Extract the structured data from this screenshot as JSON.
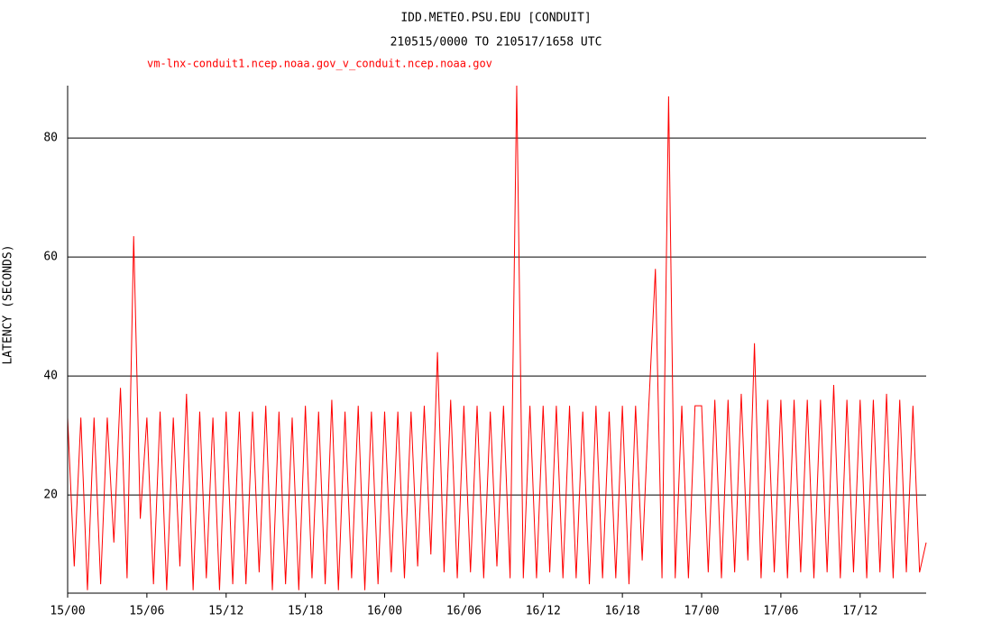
{
  "chart_data": {
    "type": "line",
    "title": "IDD.METEO.PSU.EDU [CONDUIT]",
    "subtitle": "210515/0000 TO 210517/1658 UTC",
    "y_label": "LATENCY (SECONDS)",
    "x": [
      0,
      0.5,
      1,
      1.5,
      2,
      2.5,
      3,
      3.5,
      4,
      4.5,
      5,
      5.5,
      6,
      6.5,
      7,
      7.5,
      8,
      8.5,
      9,
      9.5,
      10,
      10.5,
      11,
      11.5,
      12,
      12.5,
      13,
      13.5,
      14,
      14.5,
      15,
      15.5,
      16,
      16.5,
      17,
      17.5,
      18,
      18.5,
      19,
      19.5,
      20,
      20.5,
      21,
      21.5,
      22,
      22.5,
      23,
      23.5,
      24,
      24.5,
      25,
      25.5,
      26,
      26.5,
      27,
      27.5,
      28,
      28.5,
      29,
      29.5,
      30,
      30.5,
      31,
      31.5,
      32,
      32.5,
      33,
      33.5,
      34,
      34.5,
      35,
      35.5,
      36,
      36.5,
      37,
      37.5,
      38,
      38.5,
      39,
      39.5,
      40,
      40.5,
      41,
      41.5,
      42,
      42.5,
      43,
      43.5,
      44,
      44.5,
      45,
      45.5,
      46,
      46.5,
      47,
      47.5,
      48,
      48.5,
      49,
      49.5,
      50,
      50.5,
      51,
      51.5,
      52,
      52.5,
      53,
      53.5,
      54,
      54.5,
      55,
      55.5,
      56,
      56.5,
      57,
      57.5,
      58,
      58.5,
      59,
      59.5,
      60,
      60.5,
      61,
      61.5,
      62,
      62.5,
      63,
      63.5,
      64,
      64.5,
      65
    ],
    "series": [
      {
        "name": "vm-lnx-conduit1.ncep.noaa.gov_v_conduit.ncep.noaa.gov",
        "color": "#ff0000",
        "values": [
          33,
          8,
          33,
          4,
          33,
          5,
          33,
          12,
          38,
          6,
          63.5,
          16,
          33,
          5,
          34,
          4,
          33,
          8,
          37,
          4,
          34,
          6,
          33,
          4,
          34,
          5,
          34,
          5,
          34,
          7,
          35,
          4,
          34,
          5,
          33,
          4,
          35,
          6,
          34,
          5,
          36,
          4,
          34,
          6,
          35,
          4,
          34,
          5,
          34,
          7,
          34,
          6,
          34,
          8,
          35,
          10,
          44,
          7,
          36,
          6,
          35,
          7,
          35,
          6,
          34,
          8,
          35,
          6,
          88.8,
          6,
          35,
          6,
          35,
          7,
          35,
          6,
          35,
          6,
          34,
          5,
          35,
          6,
          34,
          6,
          35,
          5,
          35,
          9,
          35,
          58,
          6,
          87,
          6,
          35,
          6,
          35,
          35,
          7,
          36,
          6,
          36,
          7,
          37,
          9,
          45.5,
          6,
          36,
          7,
          36,
          6,
          36,
          7,
          36,
          6,
          36,
          7,
          38.5,
          6,
          36,
          7,
          36,
          6,
          36,
          7,
          37,
          6,
          36,
          7,
          35,
          7,
          12
        ]
      }
    ],
    "xlim": [
      0,
      65
    ],
    "xticks": [
      {
        "value": 0,
        "label": "15/00"
      },
      {
        "value": 6,
        "label": "15/06"
      },
      {
        "value": 12,
        "label": "15/12"
      },
      {
        "value": 18,
        "label": "15/18"
      },
      {
        "value": 24,
        "label": "16/00"
      },
      {
        "value": 30,
        "label": "16/06"
      },
      {
        "value": 36,
        "label": "16/12"
      },
      {
        "value": 42,
        "label": "16/18"
      },
      {
        "value": 48,
        "label": "17/00"
      },
      {
        "value": 54,
        "label": "17/06"
      },
      {
        "value": 60,
        "label": "17/12"
      }
    ],
    "ylim": [
      3.5,
      88.8
    ],
    "yticks": [
      20,
      40,
      60,
      80
    ],
    "grid": true
  }
}
